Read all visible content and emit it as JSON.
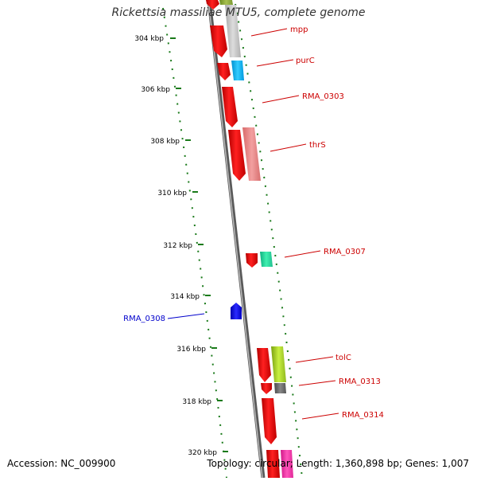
{
  "title": "Rickettsia massiliae MTU5, complete genome",
  "footer": {
    "accession": "Accession: NC_009900",
    "summary": "Topology: circular; Length: 1,360,898 bp; Genes: 1,007"
  },
  "colors": {
    "tick": "#1a7a1a",
    "backbone": "#7a7a7a",
    "gene_fwd": "#ff1a1a",
    "label_red": "#cc0000",
    "label_blue": "#0000cc"
  },
  "ticks": [
    "304 kbp",
    "306 kbp",
    "308 kbp",
    "310 kbp",
    "312 kbp",
    "314 kbp",
    "316 kbp",
    "318 kbp",
    "320 kbp"
  ],
  "gene_labels": [
    {
      "name": "mpp",
      "color": "#cc0000"
    },
    {
      "name": "purC",
      "color": "#cc0000"
    },
    {
      "name": "RMA_0303",
      "color": "#cc0000"
    },
    {
      "name": "thrS",
      "color": "#cc0000"
    },
    {
      "name": "RMA_0307",
      "color": "#cc0000"
    },
    {
      "name": "RMA_0308",
      "color": "#0000cc"
    },
    {
      "name": "tolC",
      "color": "#cc0000"
    },
    {
      "name": "RMA_0313",
      "color": "#cc0000"
    },
    {
      "name": "RMA_0314",
      "color": "#cc0000"
    }
  ]
}
